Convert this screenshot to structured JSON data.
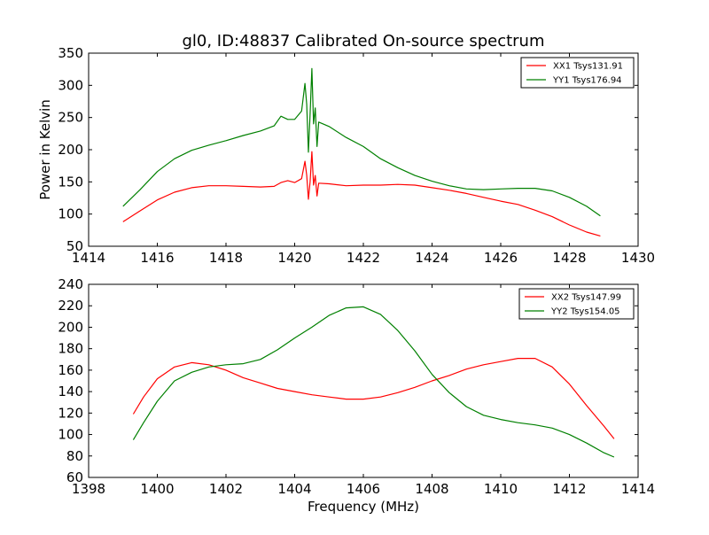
{
  "figure": {
    "title": "gl0, ID:48837 Calibrated On-source spectrum",
    "ylabel": "Power in Kelvin",
    "xlabel": "Frequency (MHz)"
  },
  "chart_data": [
    {
      "type": "line",
      "title": "gl0, ID:48837 Calibrated On-source spectrum",
      "xlabel": "",
      "ylabel": "Power in Kelvin",
      "xlim": [
        1414,
        1430
      ],
      "ylim": [
        50,
        350
      ],
      "xticks": [
        1414,
        1416,
        1418,
        1420,
        1422,
        1424,
        1426,
        1428,
        1430
      ],
      "yticks": [
        50,
        100,
        150,
        200,
        250,
        300,
        350
      ],
      "legend_position": "top-right",
      "series": [
        {
          "name": "XX1 Tsys131.91",
          "color": "#ff0000",
          "x": [
            1415.0,
            1415.5,
            1416.0,
            1416.5,
            1417.0,
            1417.5,
            1418.0,
            1418.5,
            1419.0,
            1419.4,
            1419.6,
            1419.8,
            1420.0,
            1420.2,
            1420.3,
            1420.35,
            1420.4,
            1420.45,
            1420.5,
            1420.55,
            1420.6,
            1420.65,
            1420.7,
            1421.0,
            1421.5,
            1422.0,
            1422.5,
            1423.0,
            1423.5,
            1424.0,
            1424.5,
            1425.0,
            1425.5,
            1426.0,
            1426.5,
            1427.0,
            1427.5,
            1428.0,
            1428.5,
            1428.9
          ],
          "values": [
            88,
            105,
            122,
            134,
            141,
            144,
            144,
            143,
            142,
            143,
            149,
            152,
            149,
            155,
            182,
            160,
            123,
            150,
            197,
            145,
            160,
            128,
            148,
            147,
            144,
            145,
            145,
            146,
            145,
            141,
            137,
            132,
            126,
            120,
            115,
            106,
            96,
            83,
            72,
            66
          ]
        },
        {
          "name": "YY1 Tsys176.94",
          "color": "#008000",
          "x": [
            1415.0,
            1415.5,
            1416.0,
            1416.5,
            1417.0,
            1417.5,
            1418.0,
            1418.5,
            1419.0,
            1419.4,
            1419.6,
            1419.8,
            1420.0,
            1420.2,
            1420.3,
            1420.35,
            1420.4,
            1420.45,
            1420.5,
            1420.55,
            1420.6,
            1420.65,
            1420.7,
            1421.0,
            1421.5,
            1422.0,
            1422.5,
            1423.0,
            1423.5,
            1424.0,
            1424.5,
            1425.0,
            1425.5,
            1426.0,
            1426.5,
            1427.0,
            1427.5,
            1428.0,
            1428.5,
            1428.9
          ],
          "values": [
            112,
            138,
            166,
            186,
            199,
            207,
            214,
            222,
            229,
            237,
            252,
            247,
            247,
            260,
            303,
            270,
            196,
            255,
            326,
            240,
            265,
            205,
            243,
            236,
            219,
            205,
            186,
            172,
            160,
            151,
            144,
            139,
            138,
            139,
            140,
            140,
            136,
            126,
            112,
            97
          ]
        }
      ]
    },
    {
      "type": "line",
      "title": "",
      "xlabel": "Frequency (MHz)",
      "ylabel": "",
      "xlim": [
        1398,
        1414
      ],
      "ylim": [
        60,
        240
      ],
      "xticks": [
        1398,
        1400,
        1402,
        1404,
        1406,
        1408,
        1410,
        1412,
        1414
      ],
      "yticks": [
        60,
        80,
        100,
        120,
        140,
        160,
        180,
        200,
        220,
        240
      ],
      "legend_position": "top-right",
      "series": [
        {
          "name": "XX2 Tsys147.99",
          "color": "#ff0000",
          "x": [
            1399.3,
            1399.6,
            1400.0,
            1400.5,
            1401.0,
            1401.5,
            1402.0,
            1402.5,
            1403.0,
            1403.5,
            1404.0,
            1404.5,
            1405.0,
            1405.5,
            1406.0,
            1406.5,
            1407.0,
            1407.5,
            1408.0,
            1408.5,
            1409.0,
            1409.5,
            1410.0,
            1410.5,
            1411.0,
            1411.5,
            1412.0,
            1412.5,
            1413.0,
            1413.3
          ],
          "values": [
            119,
            135,
            152,
            163,
            167,
            165,
            160,
            153,
            148,
            143,
            140,
            137,
            135,
            133,
            133,
            135,
            139,
            144,
            150,
            155,
            161,
            165,
            168,
            171,
            171,
            163,
            147,
            127,
            108,
            96
          ]
        },
        {
          "name": "YY2 Tsys154.05",
          "color": "#008000",
          "x": [
            1399.3,
            1399.6,
            1400.0,
            1400.5,
            1401.0,
            1401.5,
            1402.0,
            1402.5,
            1403.0,
            1403.5,
            1404.0,
            1404.5,
            1405.0,
            1405.5,
            1406.0,
            1406.5,
            1407.0,
            1407.5,
            1408.0,
            1408.5,
            1409.0,
            1409.5,
            1410.0,
            1410.5,
            1411.0,
            1411.5,
            1412.0,
            1412.5,
            1413.0,
            1413.3
          ],
          "values": [
            95,
            111,
            131,
            150,
            158,
            163,
            165,
            166,
            170,
            179,
            190,
            200,
            211,
            218,
            219,
            212,
            197,
            178,
            156,
            139,
            126,
            118,
            114,
            111,
            109,
            106,
            100,
            92,
            83,
            79
          ]
        }
      ]
    }
  ]
}
